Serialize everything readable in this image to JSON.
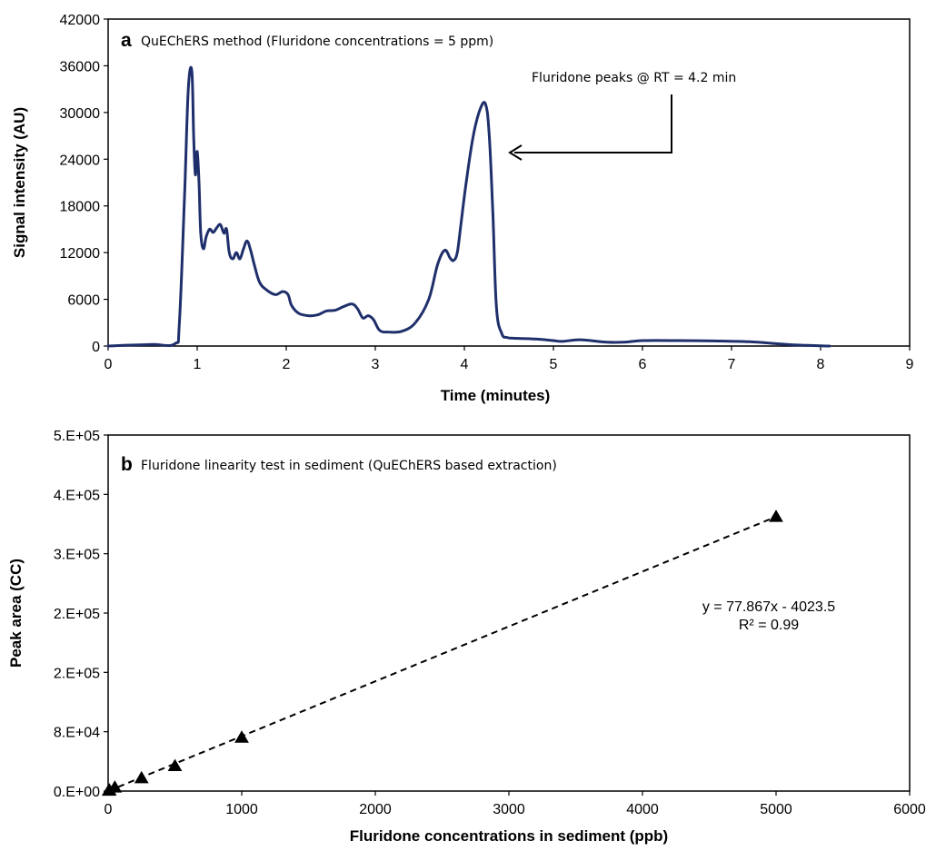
{
  "chart_data": [
    {
      "type": "line",
      "panel_label": "a",
      "title": "QuEChERS method (Fluridone concentrations = 5 ppm)",
      "xlabel": "Time (minutes)",
      "ylabel": "Signal intensity (AU)",
      "xlim": [
        0,
        9
      ],
      "ylim": [
        0,
        42000
      ],
      "x_ticks": [
        "0",
        "1",
        "2",
        "3",
        "4",
        "5",
        "6",
        "7",
        "8",
        "9"
      ],
      "y_ticks": [
        "0",
        "6000",
        "12000",
        "18000",
        "24000",
        "30000",
        "36000",
        "42000"
      ],
      "grid": false,
      "line_color": "#1f2f6b",
      "annotation": "Fluridone peaks @ RT = 4.2 min",
      "annotation_arrow_target": [
        4.5,
        25000
      ],
      "series": [
        {
          "x": [
            0,
            0.2,
            0.5,
            0.75,
            0.8,
            0.86,
            0.9,
            0.94,
            0.96,
            0.98,
            1.0,
            1.02,
            1.04,
            1.07,
            1.1,
            1.14,
            1.18,
            1.22,
            1.26,
            1.3,
            1.33,
            1.36,
            1.4,
            1.44,
            1.48,
            1.52,
            1.56,
            1.6,
            1.64,
            1.7,
            1.78,
            1.88,
            1.96,
            2.02,
            2.06,
            2.14,
            2.25,
            2.35,
            2.45,
            2.55,
            2.65,
            2.74,
            2.8,
            2.86,
            2.92,
            2.98,
            3.05,
            3.15,
            3.3,
            3.45,
            3.6,
            3.7,
            3.78,
            3.84,
            3.88,
            3.92,
            3.96,
            4.02,
            4.1,
            4.18,
            4.24,
            4.28,
            4.32,
            4.36,
            4.42,
            4.48,
            4.55,
            4.8,
            5.0,
            5.1,
            5.3,
            5.6,
            5.8,
            6.0,
            6.4,
            6.8,
            7.2,
            7.5,
            7.7,
            8.0,
            8.1
          ],
          "y": [
            0,
            100,
            200,
            300,
            3000,
            20000,
            33000,
            35300,
            27000,
            22000,
            25000,
            21000,
            14500,
            12500,
            14000,
            15000,
            14600,
            15200,
            15600,
            14500,
            15000,
            12000,
            11200,
            12000,
            11200,
            12500,
            13500,
            12300,
            10500,
            8200,
            7200,
            6600,
            7000,
            6600,
            5200,
            4200,
            3900,
            4000,
            4500,
            4600,
            5100,
            5400,
            4800,
            3600,
            3900,
            3400,
            2000,
            1800,
            1900,
            3000,
            6000,
            10500,
            12300,
            11300,
            11000,
            12000,
            15500,
            21000,
            27000,
            30500,
            31000,
            27000,
            17000,
            5000,
            1600,
            1100,
            1000,
            900,
            700,
            600,
            800,
            500,
            500,
            700,
            700,
            650,
            550,
            300,
            150,
            30,
            0
          ]
        }
      ]
    },
    {
      "type": "scatter",
      "panel_label": "b",
      "title": "Fluridone linearity test in sediment (QuEChERS based extraction)",
      "xlabel": "Fluridone concentrations in sediment (ppb)",
      "ylabel": "Peak area (CC)",
      "xlim": [
        0,
        6000
      ],
      "ylim": [
        0,
        500000
      ],
      "x_ticks": [
        "0",
        "1000",
        "2000",
        "3000",
        "4000",
        "5000",
        "6000"
      ],
      "y_ticks": [
        "0.E+00",
        "8.E+04",
        "2.E+05",
        "2.E+05",
        "3.E+05",
        "4.E+05",
        "5.E+05"
      ],
      "grid": false,
      "marker": "triangle",
      "marker_color": "#000000",
      "trendline": {
        "slope": 77.867,
        "intercept": -4023.5,
        "style": "dashed",
        "x_range": [
          0,
          5000
        ]
      },
      "equation": "y = 77.867x - 4023.5",
      "r_squared": "R² = 0.99",
      "series": [
        {
          "x": [
            5,
            10,
            50,
            250,
            500,
            1000,
            5000
          ],
          "y": [
            500,
            1000,
            5000,
            18000,
            35000,
            75000,
            385000
          ]
        }
      ]
    }
  ]
}
